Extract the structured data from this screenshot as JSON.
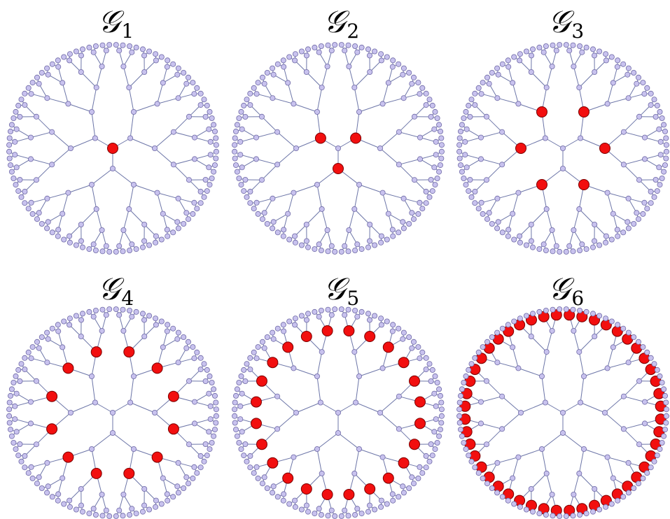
{
  "colors": {
    "background": "#ffffff",
    "node_fill": "#c8c2ee",
    "node_stroke": "#6f6aa6",
    "edge": "#6d76a8",
    "highlight_fill": "#f20f0f",
    "highlight_stroke": "#7a0000"
  },
  "tree": {
    "structure": "Cayley tree (Bethe lattice), coordination number 3",
    "shells": 6,
    "nodes_per_shell": [
      1,
      3,
      6,
      12,
      24,
      48,
      96
    ]
  },
  "panels": [
    {
      "title": "𝒢",
      "subscript": "1",
      "highlighted_shell": 0
    },
    {
      "title": "𝒢",
      "subscript": "2",
      "highlighted_shell": 1
    },
    {
      "title": "𝒢",
      "subscript": "3",
      "highlighted_shell": 2
    },
    {
      "title": "𝒢",
      "subscript": "4",
      "highlighted_shell": 3
    },
    {
      "title": "𝒢",
      "subscript": "5",
      "highlighted_shell": 4
    },
    {
      "title": "𝒢",
      "subscript": "6",
      "highlighted_shell": 5
    }
  ]
}
